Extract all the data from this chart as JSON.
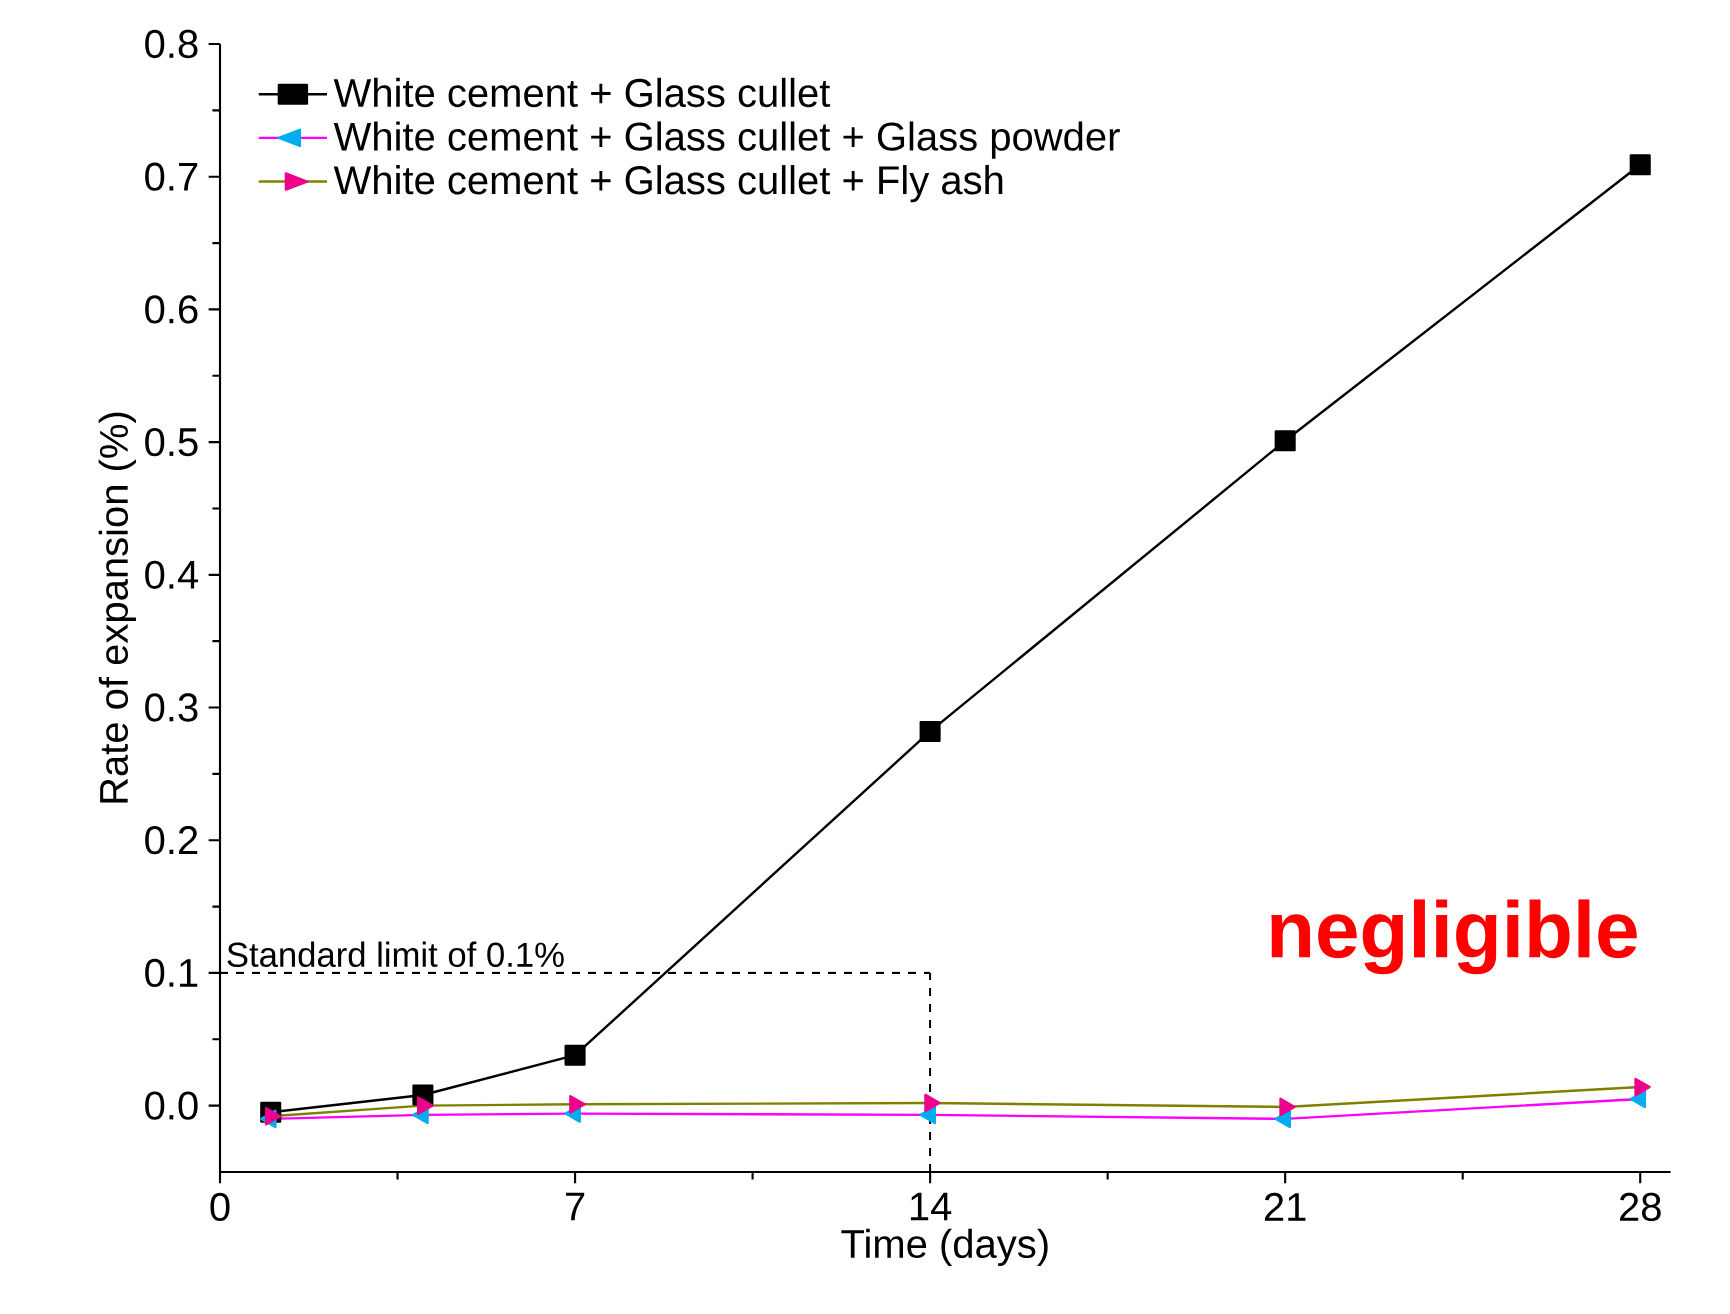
{
  "chart_data": {
    "type": "line",
    "xlabel": "Time (days)",
    "ylabel": "Rate of expansion (%)",
    "x": [
      1,
      4,
      7,
      14,
      21,
      28
    ],
    "series": [
      {
        "name": "White cement + Glass cullet",
        "color": "#000000",
        "marker": "square",
        "values": [
          -0.005,
          0.008,
          0.038,
          0.282,
          0.501,
          0.709
        ]
      },
      {
        "name": "White cement + Glass cullet + Glass powder",
        "color": "#ff00ff",
        "marker": "triangle",
        "values": [
          -0.01,
          -0.007,
          -0.006,
          -0.007,
          -0.01,
          0.005
        ]
      },
      {
        "name": "White cement + Glass cullet + Fly ash",
        "color": "#808000",
        "marker": "triangle",
        "values": [
          -0.008,
          0.0,
          0.001,
          0.002,
          -0.001,
          0.014
        ]
      }
    ],
    "xlim": [
      0,
      28.6
    ],
    "xticks": [
      0,
      7,
      14,
      21,
      28
    ],
    "ylim": [
      -0.05,
      0.8
    ],
    "yticks": [
      {
        "value": 0,
        "label": "0.0"
      },
      0.1,
      0.2,
      0.3,
      0.4,
      0.5,
      0.6,
      0.7,
      0.8
    ],
    "ref_lines": [
      {
        "axis": "y",
        "value": 0.1,
        "label": "Standard limit of 0.1%",
        "line_style": "dashed"
      },
      {
        "axis": "x",
        "value": 14,
        "line_style": "dashed"
      }
    ],
    "annotations": [
      "negligible"
    ],
    "legend": "top left",
    "grid": false
  }
}
